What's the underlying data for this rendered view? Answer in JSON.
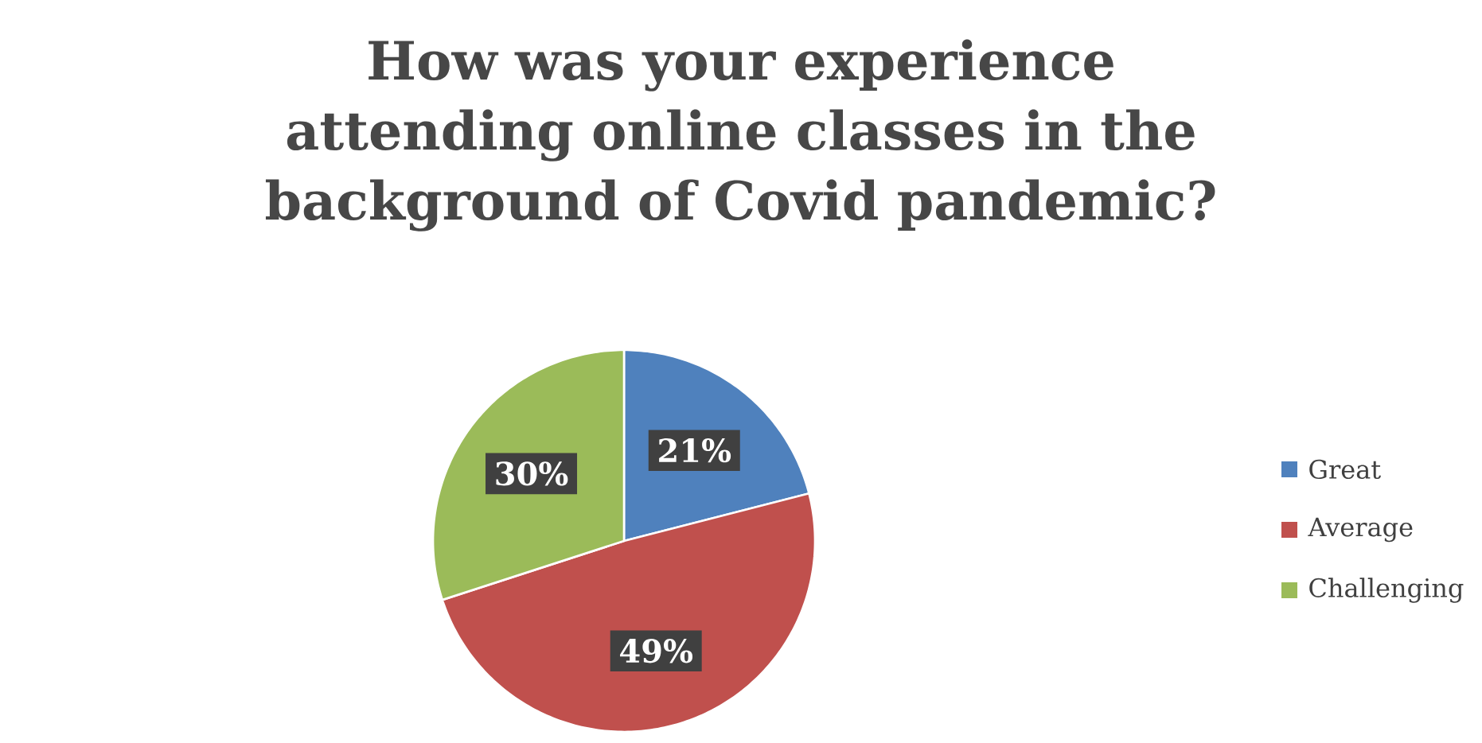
{
  "chart_data": {
    "type": "pie",
    "title": "How was your experience attending online classes in the background of Covid pandemic?",
    "categories": [
      "Great",
      "Average",
      "Challenging"
    ],
    "values": [
      21,
      49,
      30
    ],
    "colors": [
      "#4f81bd",
      "#c0504d",
      "#9bbb59"
    ],
    "value_labels": [
      "21%",
      "49%",
      "30%"
    ],
    "legend": "right"
  }
}
